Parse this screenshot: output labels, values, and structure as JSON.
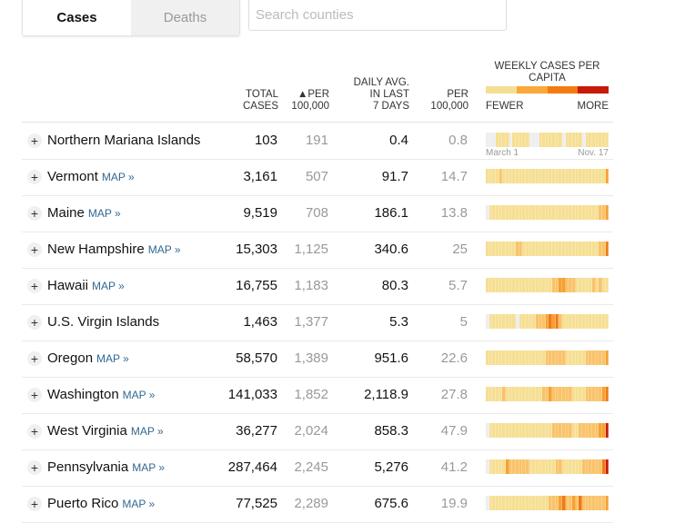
{
  "tabs": [
    {
      "label": "Cases",
      "active": true
    },
    {
      "label": "Deaths",
      "active": false
    }
  ],
  "search": {
    "placeholder": "Search counties"
  },
  "headers": {
    "total": [
      "TOTAL",
      "CASES"
    ],
    "per": [
      "▲PER",
      "100,000"
    ],
    "daily": [
      "DAILY AVG.",
      "IN LAST",
      "7 DAYS"
    ],
    "per2": [
      "PER",
      "100,000"
    ],
    "weekly": "WEEKLY CASES PER CAPITA",
    "fewer": "FEWER",
    "more": "MORE"
  },
  "legend_colors": [
    "#f6df93",
    "#f9a83a",
    "#f47b12",
    "#c81a08"
  ],
  "level_colors": [
    "#eeeeee",
    "#f6df93",
    "#f9c36a",
    "#f7a032",
    "#f07a17",
    "#c81a08"
  ],
  "axis": {
    "start": "March 1",
    "end": "Nov. 17"
  },
  "map_label": "MAP »",
  "rows": [
    {
      "name": "Northern Mariana Islands",
      "map": false,
      "total": "103",
      "per": "191",
      "daily": "0.4",
      "per2": "0.8",
      "heat": "0001111011111000111111101111101111111"
    },
    {
      "name": "Vermont",
      "map": true,
      "total": "3,161",
      "per": "507",
      "daily": "91.7",
      "per2": "14.7",
      "heat": "1111211111111111111111111111111111113"
    },
    {
      "name": "Maine",
      "map": true,
      "total": "9,519",
      "per": "708",
      "daily": "186.1",
      "per2": "13.8",
      "heat": "0111111111111111111111111111111111223"
    },
    {
      "name": "New Hampshire",
      "map": true,
      "total": "15,303",
      "per": "1,125",
      "daily": "340.6",
      "per2": "25",
      "heat": "1111111112211111111111111111111111224"
    },
    {
      "name": "Hawaii",
      "map": true,
      "total": "16,755",
      "per": "1,183",
      "daily": "80.3",
      "per2": "5.7",
      "heat": "1111111111111111111122332221111121211"
    },
    {
      "name": "U.S. Virgin Islands",
      "map": false,
      "total": "1,463",
      "per": "1,377",
      "daily": "5.3",
      "per2": "5",
      "heat": "0111111110111112223434211111111111111"
    },
    {
      "name": "Oregon",
      "map": true,
      "total": "58,570",
      "per": "1,389",
      "daily": "951.6",
      "per2": "22.6",
      "heat": "1111111111111111112222221111112222223"
    },
    {
      "name": "Washington",
      "map": true,
      "total": "141,033",
      "per": "1,852",
      "daily": "2,118.9",
      "per2": "27.8",
      "heat": "1111121111111111122322222211112222234"
    },
    {
      "name": "West Virginia",
      "map": true,
      "total": "36,277",
      "per": "2,024",
      "daily": "858.3",
      "per2": "47.9",
      "heat": "0111111111111111111122222211222222335"
    },
    {
      "name": "Pennsylvania",
      "map": true,
      "total": "287,464",
      "per": "2,245",
      "daily": "5,276",
      "per2": "41.2",
      "heat": "0111113222222111111112211111122222245"
    },
    {
      "name": "Puerto Rico",
      "map": true,
      "total": "77,525",
      "per": "2,289",
      "daily": "675.6",
      "per2": "19.9",
      "heat": "0111111111111111111222342232422222223"
    }
  ]
}
